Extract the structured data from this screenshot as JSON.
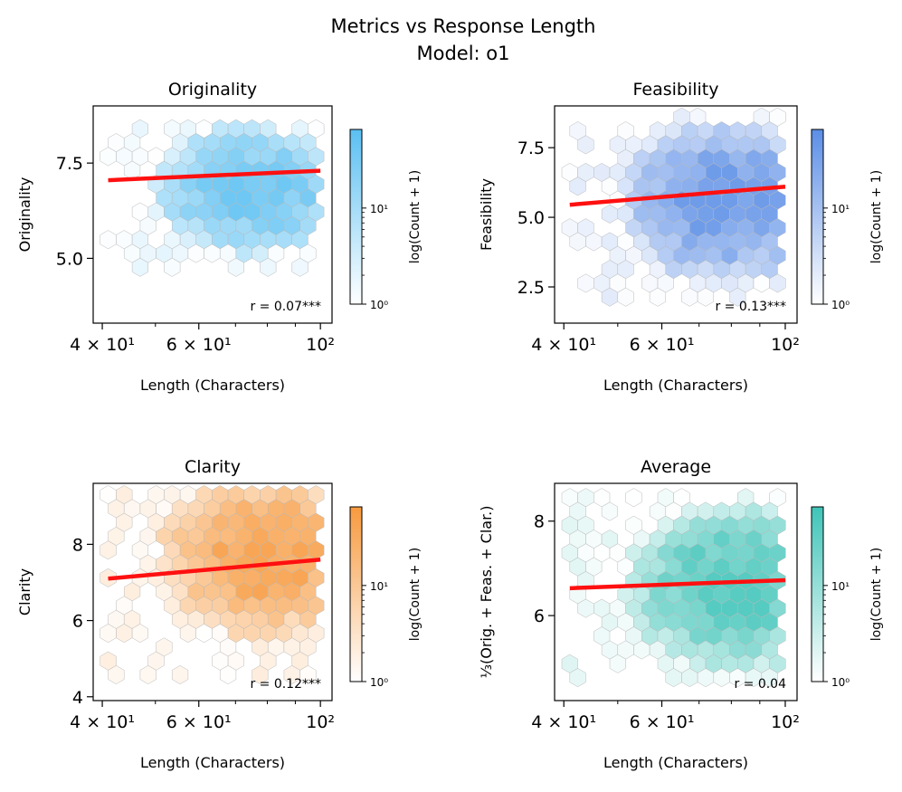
{
  "figure": {
    "title_line1": "Metrics vs Response Length",
    "title_line2": "Model: o1"
  },
  "chart_data": [
    {
      "type": "hexbin",
      "title": "Originality",
      "xlabel": "Length (Characters)",
      "ylabel": "Originality",
      "xscale": "log",
      "xlim": [
        38.5,
        105
      ],
      "ylim": [
        3.3,
        9.0
      ],
      "xticks": [
        {
          "value": 40,
          "label": "4 × 10¹"
        },
        {
          "value": 60,
          "label": "6 × 10¹"
        },
        {
          "value": 100,
          "label": "10²"
        }
      ],
      "yticks": [
        {
          "value": 5.0,
          "label": "5.0"
        },
        {
          "value": 7.5,
          "label": "7.5"
        }
      ],
      "x_range": [
        41,
        100
      ],
      "y_range": [
        4.6,
        8.4
      ],
      "center": {
        "x": 75,
        "y": 6.8
      },
      "trend": {
        "x": [
          41,
          100
        ],
        "y": [
          7.05,
          7.3
        ]
      },
      "correlation": "r = 0.07***",
      "color": "#5bc0f2",
      "colorbar": {
        "label": "log(Count + 1)",
        "ticks": [
          "10⁰",
          "10¹"
        ]
      }
    },
    {
      "type": "hexbin",
      "title": "Feasibility",
      "xlabel": "Length (Characters)",
      "ylabel": "Feasibility",
      "xscale": "log",
      "xlim": [
        38.5,
        105
      ],
      "ylim": [
        1.2,
        9.0
      ],
      "xticks": [
        {
          "value": 40,
          "label": "4 × 10¹"
        },
        {
          "value": 60,
          "label": "6 × 10¹"
        },
        {
          "value": 100,
          "label": "10²"
        }
      ],
      "yticks": [
        {
          "value": 2.5,
          "label": "2.5"
        },
        {
          "value": 5.0,
          "label": "5.0"
        },
        {
          "value": 7.5,
          "label": "7.5"
        }
      ],
      "x_range": [
        41,
        100
      ],
      "y_range": [
        2.0,
        8.6
      ],
      "center": {
        "x": 78,
        "y": 5.6
      },
      "trend": {
        "x": [
          41,
          100
        ],
        "y": [
          5.45,
          6.1
        ]
      },
      "correlation": "r = 0.13***",
      "color": "#5b8ee6",
      "colorbar": {
        "label": "log(Count + 1)",
        "ticks": [
          "10⁰",
          "10¹"
        ]
      }
    },
    {
      "type": "hexbin",
      "title": "Clarity",
      "xlabel": "Length (Characters)",
      "ylabel": "Clarity",
      "xscale": "log",
      "xlim": [
        38.5,
        105
      ],
      "ylim": [
        3.9,
        9.6
      ],
      "xticks": [
        {
          "value": 40,
          "label": "4 × 10¹"
        },
        {
          "value": 60,
          "label": "6 × 10¹"
        },
        {
          "value": 100,
          "label": "10²"
        }
      ],
      "yticks": [
        {
          "value": 4,
          "label": "4"
        },
        {
          "value": 6,
          "label": "6"
        },
        {
          "value": 8,
          "label": "8"
        }
      ],
      "x_range": [
        41,
        100
      ],
      "y_range": [
        4.4,
        9.3
      ],
      "center": {
        "x": 78,
        "y": 7.7
      },
      "trend": {
        "x": [
          41,
          100
        ],
        "y": [
          7.1,
          7.6
        ]
      },
      "correlation": "r = 0.12***",
      "color": "#f79a3e",
      "colorbar": {
        "label": "log(Count + 1)",
        "ticks": [
          "10⁰",
          "10¹"
        ]
      }
    },
    {
      "type": "hexbin",
      "title": "Average",
      "xlabel": "Length (Characters)",
      "ylabel": "⅓(Orig. + Feas. + Clar.)",
      "xscale": "log",
      "xlim": [
        38.5,
        105
      ],
      "ylim": [
        4.2,
        8.8
      ],
      "xticks": [
        {
          "value": 40,
          "label": "4 × 10¹"
        },
        {
          "value": 60,
          "label": "6 × 10¹"
        },
        {
          "value": 100,
          "label": "10²"
        }
      ],
      "yticks": [
        {
          "value": 6,
          "label": "6"
        },
        {
          "value": 8,
          "label": "8"
        }
      ],
      "x_range": [
        41,
        100
      ],
      "y_range": [
        4.5,
        8.5
      ],
      "center": {
        "x": 80,
        "y": 6.6
      },
      "trend": {
        "x": [
          41,
          100
        ],
        "y": [
          6.58,
          6.75
        ]
      },
      "correlation": "r = 0.04",
      "color": "#3fc4b8",
      "colorbar": {
        "label": "log(Count + 1)",
        "ticks": [
          "10⁰",
          "10¹"
        ]
      }
    }
  ]
}
